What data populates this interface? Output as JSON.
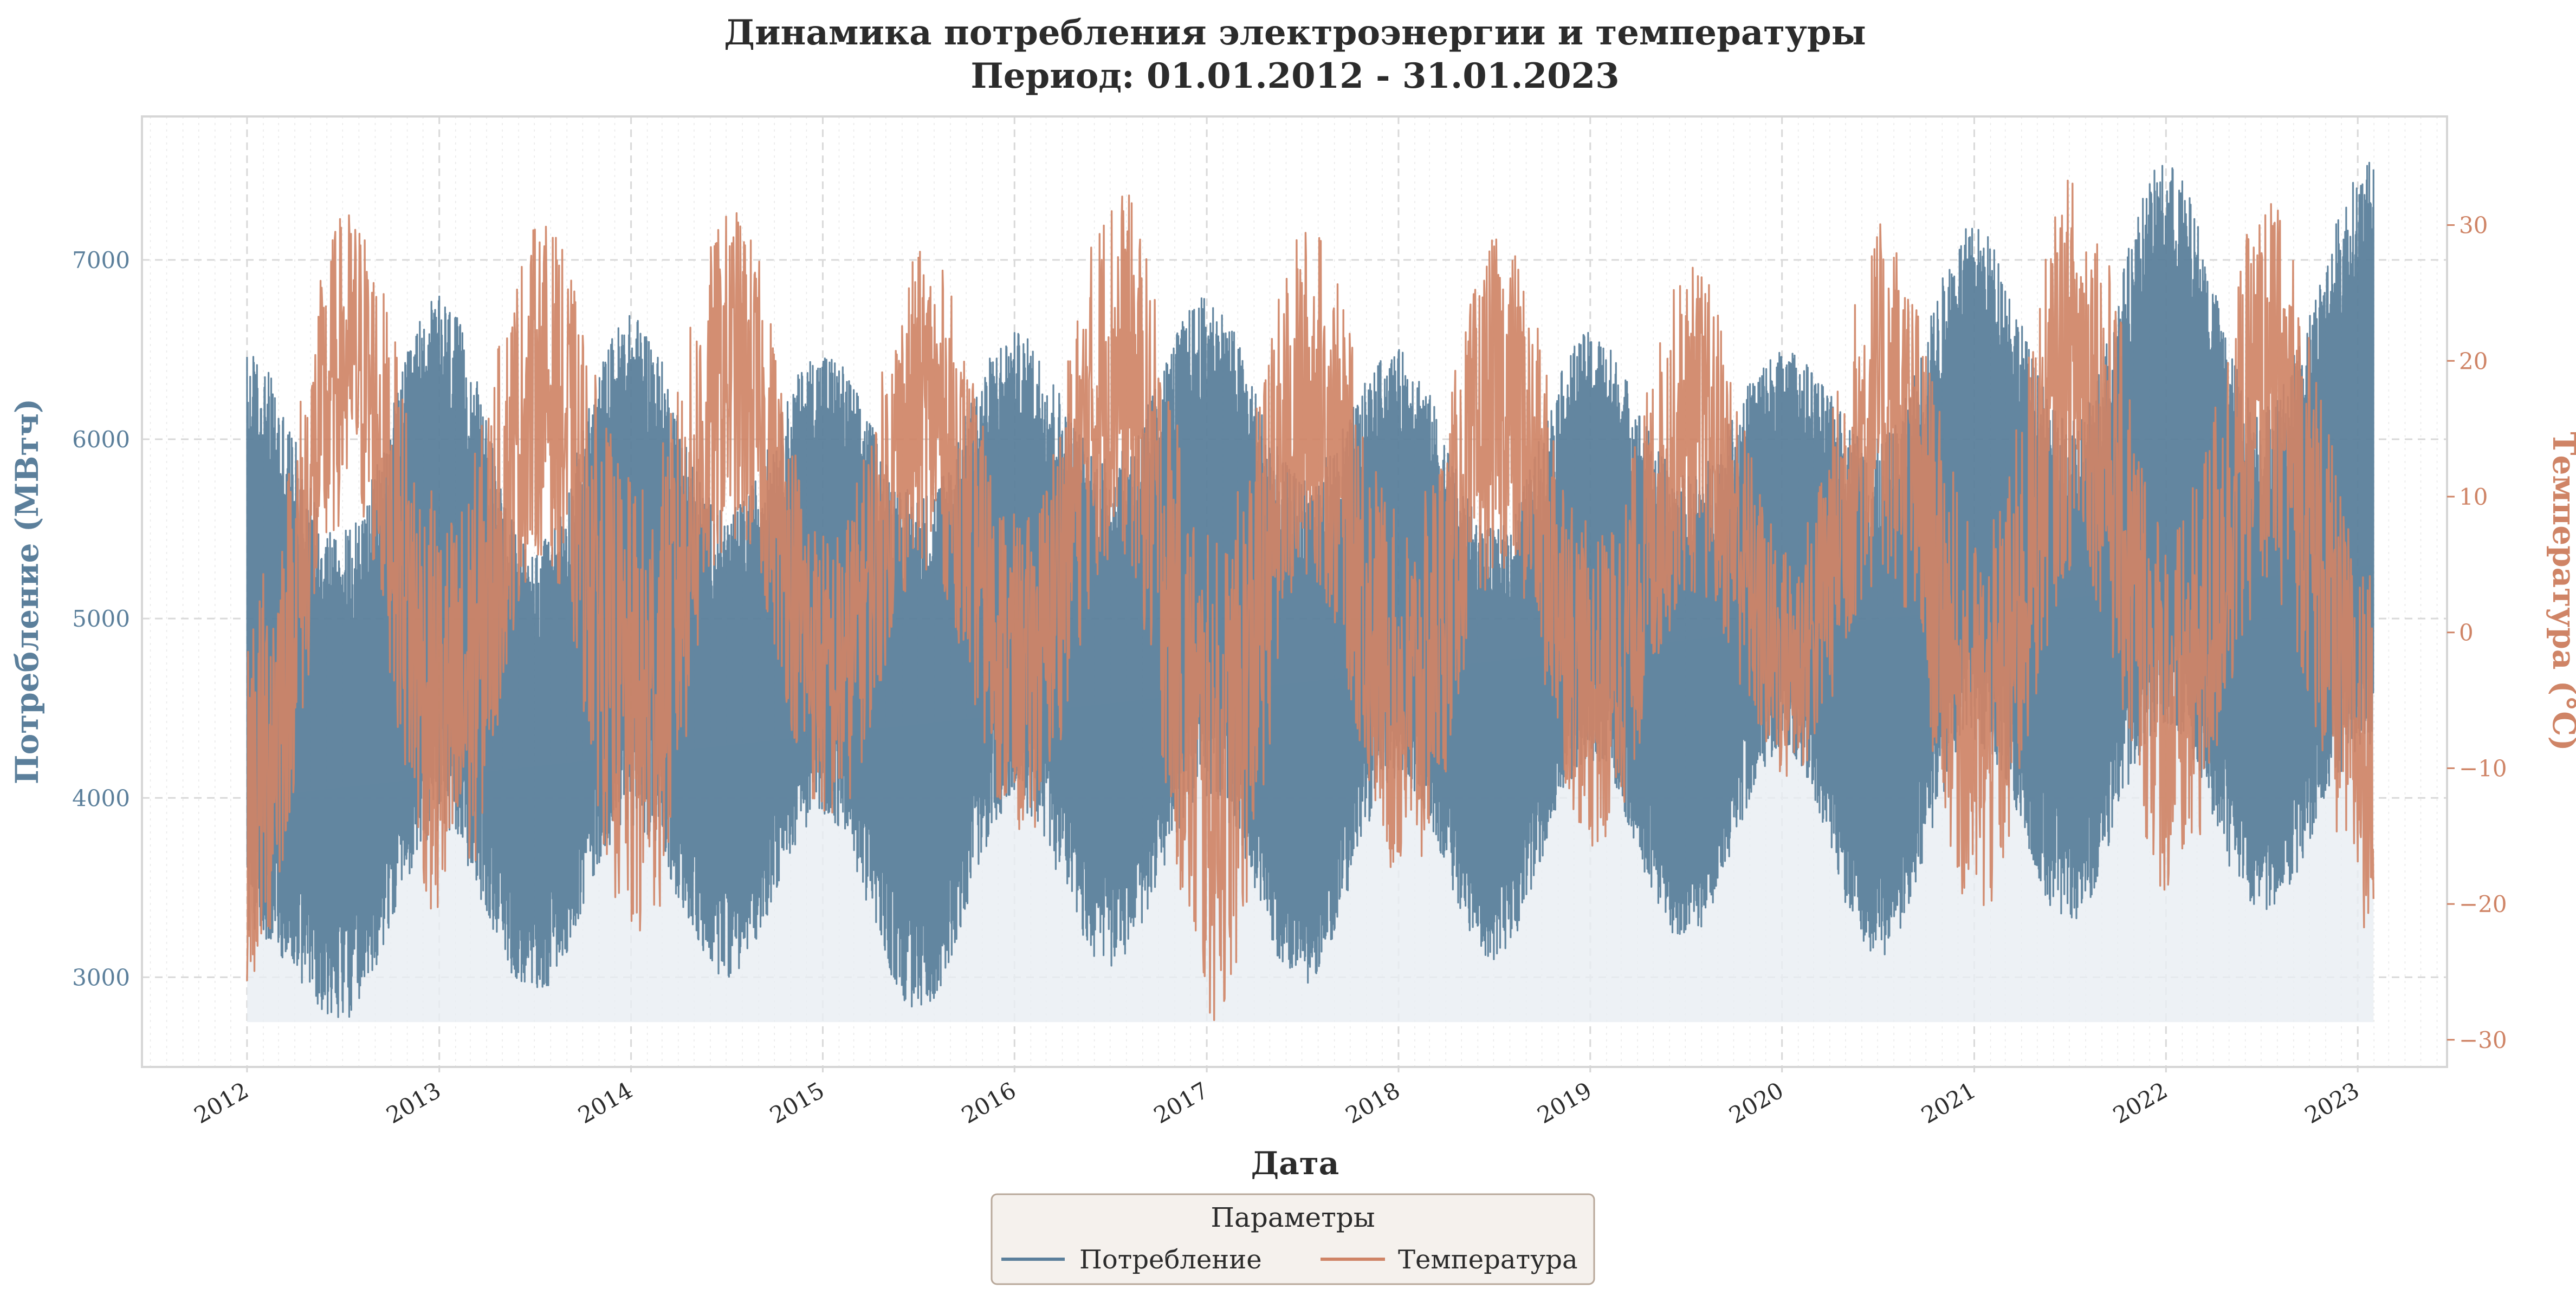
{
  "colors": {
    "consumption": "#5b7f9b",
    "temperature": "#cf8466",
    "fill": "#e8edf2",
    "grid": "#d9d9d9",
    "frame": "#d6d6d6",
    "legend_bg": "#f5f1ed",
    "legend_border": "#b8a89a",
    "text": "#2b2b2b"
  },
  "chart_data": {
    "type": "line",
    "title": "Динамика потребления электроэнергии и температуры",
    "subtitle": "Период: 01.01.2012 - 31.01.2023",
    "xlabel": "Дата",
    "ylabel_left": "Потребление (МВтч)",
    "ylabel_right": "Температура (°C)",
    "x_range": [
      "2011-06-15",
      "2023-06-20"
    ],
    "x_ticks": [
      "2012",
      "2013",
      "2014",
      "2015",
      "2016",
      "2017",
      "2018",
      "2019",
      "2020",
      "2021",
      "2022",
      "2023"
    ],
    "ylim_left": [
      2500,
      7800
    ],
    "y_ticks_left": [
      "3000",
      "4000",
      "5000",
      "6000",
      "7000"
    ],
    "ylim_right": [
      -32,
      38
    ],
    "y_ticks_right": [
      "30",
      "20",
      "10",
      "0",
      "−10",
      "−20",
      "−30"
    ],
    "grid": true,
    "series": [
      {
        "name": "Потребление",
        "axis": "left",
        "fill_baseline": 2750,
        "annual_profile": {
          "x": [
            "2012-01-01",
            "2012-07-01",
            "2013-01-01",
            "2013-07-01",
            "2014-01-01",
            "2014-07-01",
            "2015-01-01",
            "2015-07-01",
            "2016-01-01",
            "2016-07-01",
            "2017-01-01",
            "2017-07-01",
            "2018-01-01",
            "2018-07-01",
            "2019-01-01",
            "2019-07-01",
            "2020-01-01",
            "2020-07-01",
            "2021-01-01",
            "2021-07-01",
            "2022-01-01",
            "2022-07-01",
            "2023-01-31"
          ],
          "y_min": [
            3250,
            2760,
            3800,
            2900,
            3850,
            3000,
            3900,
            2800,
            3950,
            3050,
            4000,
            2950,
            4100,
            3100,
            4200,
            3200,
            4250,
            3100,
            4300,
            3300,
            4400,
            3350,
            4300
          ],
          "y_max": [
            6500,
            5500,
            6800,
            5400,
            6700,
            5600,
            6500,
            5700,
            6600,
            5900,
            6800,
            5800,
            6500,
            5500,
            6600,
            5800,
            6500,
            6000,
            7200,
            6100,
            7550,
            6200,
            7550
          ]
        }
      },
      {
        "name": "Температура",
        "axis": "right",
        "annual_profile": {
          "x": [
            "2012-01-01",
            "2012-07-15",
            "2013-01-15",
            "2013-07-15",
            "2014-01-15",
            "2014-07-15",
            "2015-01-15",
            "2015-07-15",
            "2016-01-15",
            "2016-07-15",
            "2017-01-15",
            "2017-07-15",
            "2018-01-15",
            "2018-07-15",
            "2019-01-15",
            "2019-07-15",
            "2020-01-15",
            "2020-07-15",
            "2021-01-15",
            "2021-07-15",
            "2022-01-15",
            "2022-07-15",
            "2023-01-31"
          ],
          "y_min": [
            -28,
            8,
            -24,
            5,
            -25,
            6,
            -15,
            4,
            -16,
            5,
            -30,
            3,
            -20,
            4,
            -17,
            2,
            -12,
            3,
            -23,
            4,
            -21,
            2,
            -23
          ],
          "y_max": [
            4,
            32,
            10,
            31,
            12,
            32,
            8,
            29,
            9,
            34,
            8,
            31,
            9,
            30,
            8,
            28,
            7,
            31,
            8,
            35,
            9,
            33,
            5
          ]
        }
      }
    ],
    "legend": {
      "title": "Параметры",
      "placement": "bottom-center"
    }
  }
}
